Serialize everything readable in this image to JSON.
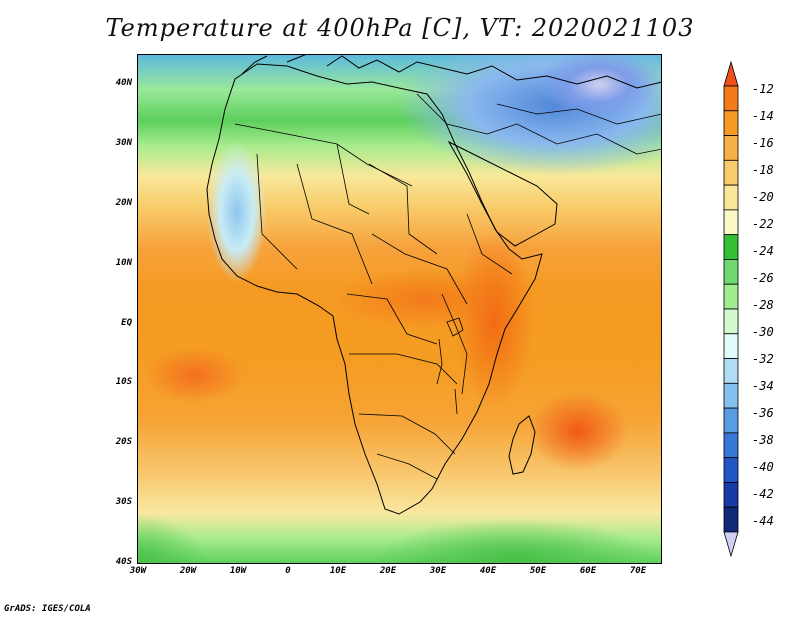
{
  "title": "Temperature at 400hPa [C], VT: 2020021103",
  "credit": "GrADS: IGES/COLA",
  "map": {
    "lat_labels": [
      "40N",
      "30N",
      "20N",
      "10N",
      "EQ",
      "10S",
      "20S",
      "30S",
      "40S"
    ],
    "lon_labels": [
      "30W",
      "20W",
      "10W",
      "0",
      "10E",
      "20E",
      "30E",
      "40E",
      "50E",
      "60E",
      "70E"
    ]
  },
  "colorbar": {
    "labels": [
      "-12",
      "-14",
      "-16",
      "-18",
      "-20",
      "-22",
      "-24",
      "-26",
      "-28",
      "-30",
      "-32",
      "-34",
      "-36",
      "-38",
      "-40",
      "-42",
      "-44"
    ],
    "colors": [
      "#f0501c",
      "#f47a1c",
      "#f59a22",
      "#f6b044",
      "#f8cc6a",
      "#f9e89a",
      "#fbf8c8",
      "#34c034",
      "#6ed86e",
      "#a0ec90",
      "#d4f8d0",
      "#e4fafa",
      "#b0dcf4",
      "#84c0ee",
      "#5a9ce4",
      "#3a78d8",
      "#2056c8",
      "#1a3aa8",
      "#102878",
      "#d0d0f4"
    ]
  }
}
